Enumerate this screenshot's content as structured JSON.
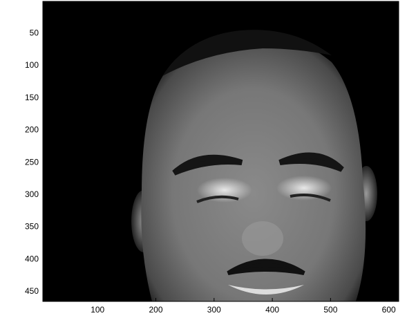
{
  "chart_data": {
    "type": "image",
    "xlim": [
      6,
      617
    ],
    "ylim": [
      0.5,
      465
    ],
    "xticks": [
      100,
      200,
      300,
      400,
      500,
      600
    ],
    "yticks": [
      50,
      100,
      150,
      200,
      250,
      300,
      350,
      400,
      450
    ]
  }
}
